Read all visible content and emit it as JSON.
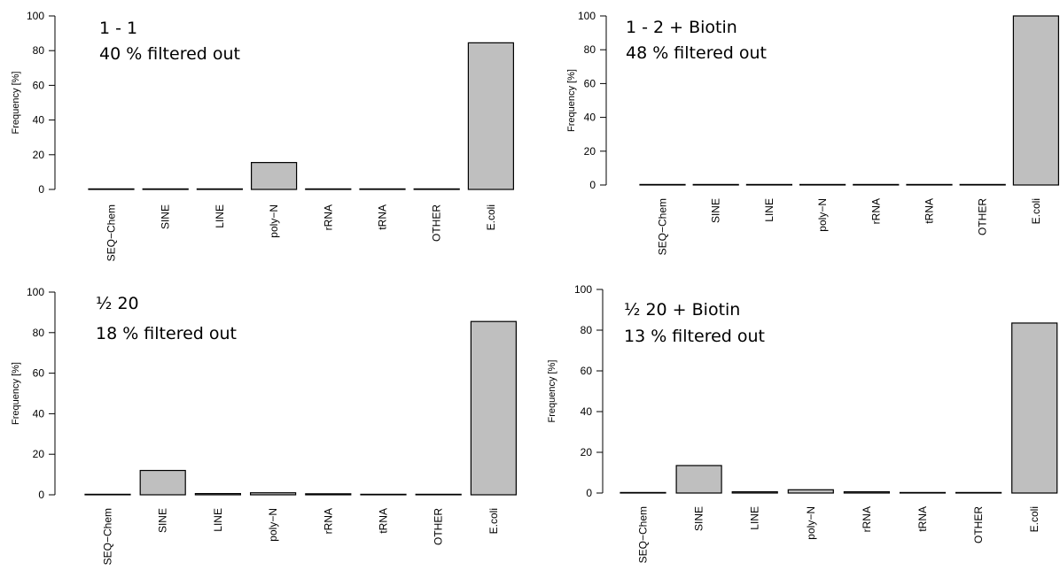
{
  "chart_data": [
    {
      "type": "bar",
      "annotation": [
        "1 - 1",
        "40 % filtered out"
      ],
      "ylabel": "Frequency [%]",
      "ylim": [
        0,
        100
      ],
      "yticks": [
        "0",
        "20",
        "40",
        "60",
        "80",
        "100"
      ],
      "categories": [
        "SEQ−Chem",
        "SINE",
        "LINE",
        "poly−N",
        "rRNA",
        "tRNA",
        "OTHER",
        "E.coli"
      ],
      "values": [
        0,
        0,
        0,
        15.5,
        0,
        0,
        0,
        84.5
      ]
    },
    {
      "type": "bar",
      "annotation": [
        "1 - 2 + Biotin",
        "48 % filtered out"
      ],
      "ylabel": "Frequency [%]",
      "ylim": [
        0,
        100
      ],
      "yticks": [
        "0",
        "20",
        "40",
        "60",
        "80",
        "100"
      ],
      "categories": [
        "SEQ−Chem",
        "SINE",
        "LINE",
        "poly−N",
        "rRNA",
        "tRNA",
        "OTHER",
        "E.coli"
      ],
      "values": [
        0,
        0,
        0,
        0,
        0,
        0,
        0,
        100
      ]
    },
    {
      "type": "bar",
      "annotation": [
        "½ 20",
        "18 % filtered out"
      ],
      "ylabel": "Frequency [%]",
      "ylim": [
        0,
        100
      ],
      "yticks": [
        "0",
        "20",
        "40",
        "60",
        "80",
        "100"
      ],
      "categories": [
        "SEQ−Chem",
        "SINE",
        "LINE",
        "poly−N",
        "rRNA",
        "tRNA",
        "OTHER",
        "E.coli"
      ],
      "values": [
        0,
        12,
        0.6,
        1.0,
        0.5,
        0,
        0,
        85.5
      ]
    },
    {
      "type": "bar",
      "annotation": [
        "½ 20 + Biotin",
        "13 % filtered out"
      ],
      "ylabel": "Frequency [%]",
      "ylim": [
        0,
        100
      ],
      "yticks": [
        "0",
        "20",
        "40",
        "60",
        "80",
        "100"
      ],
      "categories": [
        "SEQ−Chem",
        "SINE",
        "LINE",
        "poly−N",
        "rRNA",
        "tRNA",
        "OTHER",
        "E.coli"
      ],
      "values": [
        0,
        13.5,
        0.6,
        1.6,
        0.6,
        0,
        0,
        83.5
      ]
    }
  ],
  "colors": {
    "bar_fill": "#bfbfbf",
    "bar_stroke": "#000000",
    "background": "#ffffff"
  }
}
